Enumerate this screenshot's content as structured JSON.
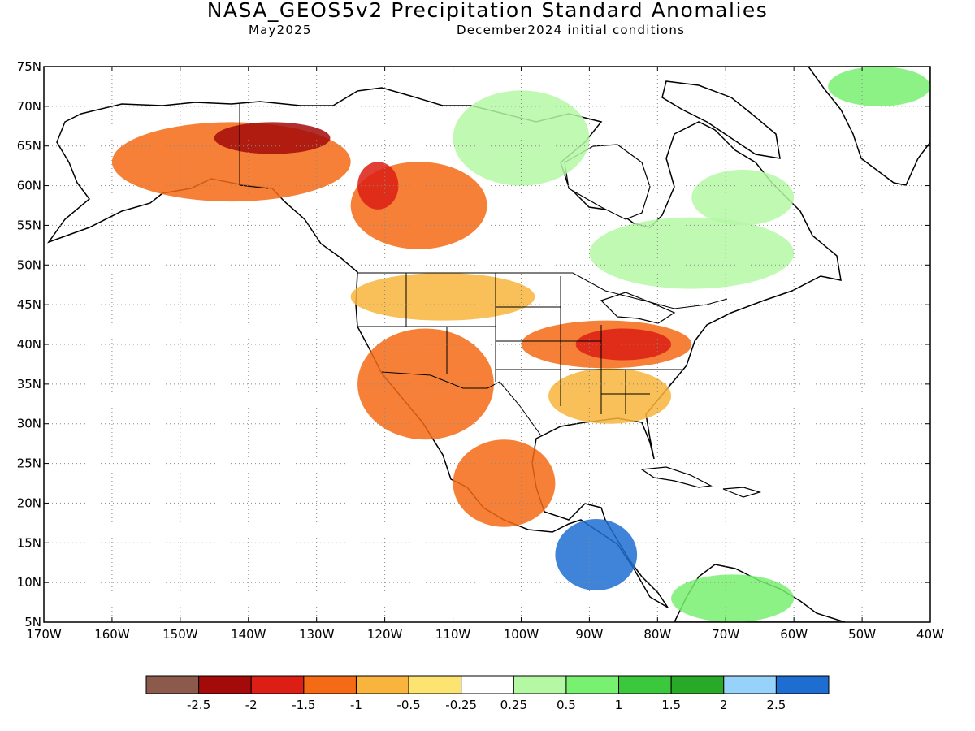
{
  "header": {
    "title": "NASA_GEOS5v2 Precipitation Standard Anomalies",
    "valid_month": "May2025",
    "init_conditions": "December2024 initial conditions"
  },
  "map": {
    "projection": "lat-lon",
    "lon_range": [
      -170,
      -40
    ],
    "lat_range": [
      5,
      75
    ],
    "lat_ticks": [
      "75N",
      "70N",
      "65N",
      "60N",
      "55N",
      "50N",
      "45N",
      "40N",
      "35N",
      "30N",
      "25N",
      "20N",
      "15N",
      "10N",
      "5N"
    ],
    "lon_ticks": [
      "170W",
      "160W",
      "150W",
      "140W",
      "130W",
      "120W",
      "110W",
      "100W",
      "90W",
      "80W",
      "70W",
      "60W",
      "50W",
      "40W"
    ],
    "grid": "dotted",
    "anomaly_regions": [
      {
        "lon": [
          -160,
          -125
        ],
        "lat": [
          58,
          68
        ],
        "level": "-1"
      },
      {
        "lon": [
          -145,
          -128
        ],
        "lat": [
          64,
          68
        ],
        "level": "-2"
      },
      {
        "lon": [
          -125,
          -105
        ],
        "lat": [
          52,
          63
        ],
        "level": "-1"
      },
      {
        "lon": [
          -124,
          -118
        ],
        "lat": [
          57,
          63
        ],
        "level": "-1.5"
      },
      {
        "lon": [
          -124,
          -104
        ],
        "lat": [
          28,
          42
        ],
        "level": "-1"
      },
      {
        "lon": [
          -110,
          -95
        ],
        "lat": [
          17,
          28
        ],
        "level": "-1"
      },
      {
        "lon": [
          -100,
          -75
        ],
        "lat": [
          37,
          43
        ],
        "level": "-1"
      },
      {
        "lon": [
          -92,
          -78
        ],
        "lat": [
          38,
          42
        ],
        "level": "-1.5"
      },
      {
        "lon": [
          -96,
          -78
        ],
        "lat": [
          30,
          37
        ],
        "level": "-0.5"
      },
      {
        "lon": [
          -125,
          -98
        ],
        "lat": [
          43,
          49
        ],
        "level": "-0.5"
      },
      {
        "lon": [
          -90,
          -60
        ],
        "lat": [
          47,
          56
        ],
        "level": "0.5"
      },
      {
        "lon": [
          -75,
          -60
        ],
        "lat": [
          55,
          62
        ],
        "level": "0.5"
      },
      {
        "lon": [
          -110,
          -90
        ],
        "lat": [
          60,
          72
        ],
        "level": "0.5"
      },
      {
        "lon": [
          -95,
          -83
        ],
        "lat": [
          9,
          18
        ],
        "level": "2.5"
      },
      {
        "lon": [
          -78,
          -60
        ],
        "lat": [
          5,
          11
        ],
        "level": "1"
      },
      {
        "lon": [
          -55,
          -40
        ],
        "lat": [
          70,
          75
        ],
        "level": "1"
      }
    ]
  },
  "legend": {
    "colors": [
      "#8b5a4a",
      "#a50a0a",
      "#dc1e14",
      "#f56a14",
      "#f8b43c",
      "#fde470",
      "#ffffff",
      "#b4f8a4",
      "#78f070",
      "#3cc83c",
      "#28aa28",
      "#96d2fa",
      "#1e6ed2"
    ],
    "labels": [
      "-2.5",
      "-2",
      "-1.5",
      "-1",
      "-0.5",
      "-0.25",
      "0.25",
      "0.5",
      "1",
      "1.5",
      "2",
      "2.5"
    ]
  }
}
